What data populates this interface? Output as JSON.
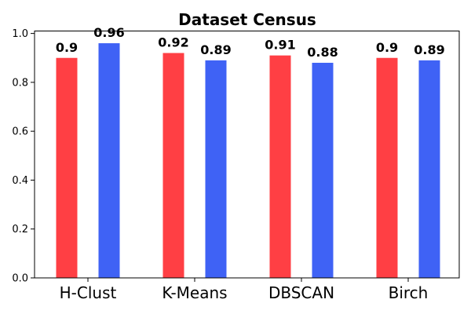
{
  "chart_data": {
    "type": "bar",
    "title": "Dataset Census",
    "xlabel": "",
    "ylabel": "",
    "categories": [
      "H-Clust",
      "K-Means",
      "DBSCAN",
      "Birch"
    ],
    "series": [
      {
        "name": "series-1",
        "color": "#ff3f44",
        "values": [
          0.9,
          0.92,
          0.91,
          0.9
        ],
        "labels": [
          "0.9",
          "0.92",
          "0.91",
          "0.9"
        ]
      },
      {
        "name": "series-2",
        "color": "#3f62f5",
        "values": [
          0.96,
          0.89,
          0.88,
          0.89
        ],
        "labels": [
          "0.96",
          "0.89",
          "0.88",
          "0.89"
        ]
      }
    ],
    "ylim": [
      0,
      1.01
    ],
    "yticks": [
      0.0,
      0.2,
      0.4,
      0.6,
      0.8,
      1.0
    ],
    "ytick_labels": [
      "0.0",
      "0.2",
      "0.4",
      "0.6",
      "0.8",
      "1.0"
    ],
    "grid": false,
    "legend": "none"
  }
}
